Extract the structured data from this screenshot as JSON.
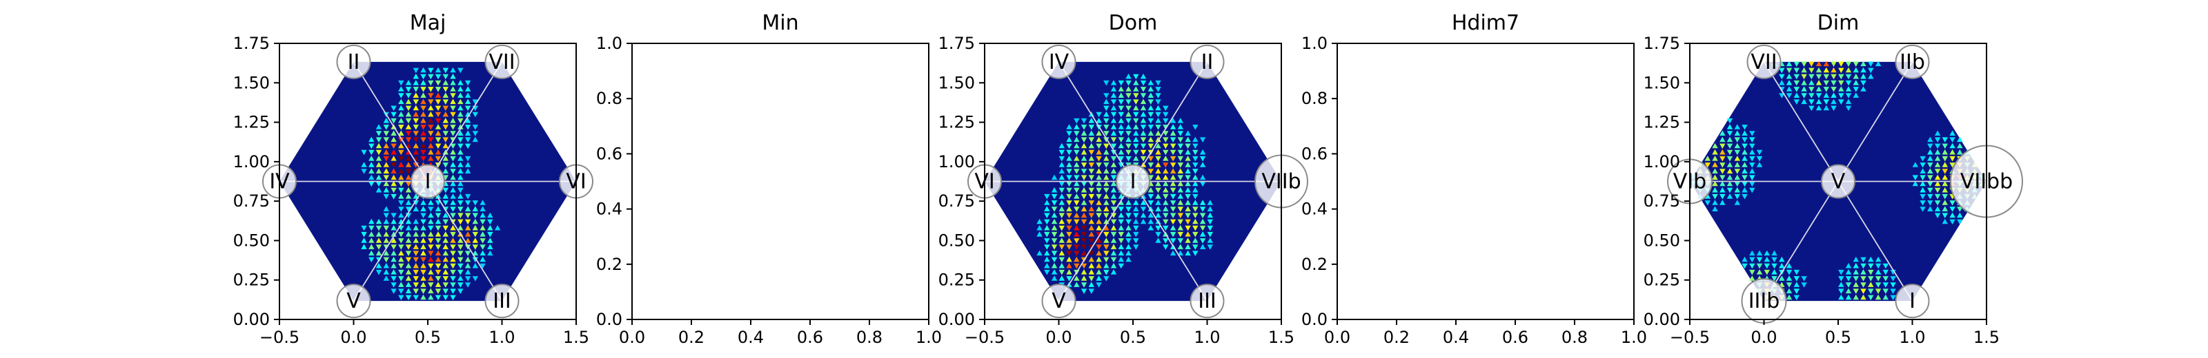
{
  "chart_data": [
    {
      "type": "heatmap",
      "title": "Maj",
      "xlim": [
        -0.5,
        1.5
      ],
      "ylim": [
        0.0,
        1.75
      ],
      "x_ticks": [
        "−0.5",
        "0.0",
        "0.5",
        "1.0",
        "1.5"
      ],
      "y_ticks": [
        "0.00",
        "0.25",
        "0.50",
        "0.75",
        "1.00",
        "1.25",
        "1.50",
        "1.75"
      ],
      "hexagon": true,
      "center_label": "I",
      "vertex_labels": [
        {
          "pos": "top-left",
          "label": "II",
          "size": "normal"
        },
        {
          "pos": "top-right",
          "label": "VII",
          "size": "normal"
        },
        {
          "pos": "left",
          "label": "IV",
          "size": "normal"
        },
        {
          "pos": "right",
          "label": "VI",
          "size": "normal"
        },
        {
          "pos": "bottom-left",
          "label": "V",
          "size": "normal"
        },
        {
          "pos": "bottom-right",
          "label": "III",
          "size": "normal"
        }
      ],
      "hotspots": [
        {
          "x": 0.45,
          "y": 1.05,
          "r": 0.22,
          "w": 0.9
        },
        {
          "x": 0.55,
          "y": 1.35,
          "r": 0.18,
          "w": 0.8
        },
        {
          "x": 0.3,
          "y": 1.0,
          "r": 0.15,
          "w": 0.7
        },
        {
          "x": 0.5,
          "y": 0.35,
          "r": 0.2,
          "w": 0.8
        },
        {
          "x": 0.75,
          "y": 0.55,
          "r": 0.15,
          "w": 0.6
        },
        {
          "x": 0.2,
          "y": 0.5,
          "r": 0.12,
          "w": 0.5
        }
      ]
    },
    {
      "type": "heatmap",
      "title": "Min",
      "xlim": [
        0.0,
        1.0
      ],
      "ylim": [
        0.0,
        1.0
      ],
      "x_ticks": [
        "0.0",
        "0.2",
        "0.4",
        "0.6",
        "0.8",
        "1.0"
      ],
      "y_ticks": [
        "0.0",
        "0.2",
        "0.4",
        "0.6",
        "0.8",
        "1.0"
      ],
      "hexagon": false
    },
    {
      "type": "heatmap",
      "title": "Dom",
      "xlim": [
        -0.5,
        1.5
      ],
      "ylim": [
        0.0,
        1.75
      ],
      "x_ticks": [
        "−0.5",
        "0.0",
        "0.5",
        "1.0",
        "1.5"
      ],
      "y_ticks": [
        "0.00",
        "0.25",
        "0.50",
        "0.75",
        "1.00",
        "1.25",
        "1.50",
        "1.75"
      ],
      "hexagon": true,
      "center_label": "I",
      "vertex_labels": [
        {
          "pos": "top-left",
          "label": "IV",
          "size": "normal"
        },
        {
          "pos": "top-right",
          "label": "II",
          "size": "normal"
        },
        {
          "pos": "left",
          "label": "VI",
          "size": "normal"
        },
        {
          "pos": "right",
          "label": "VIIb",
          "size": "large"
        },
        {
          "pos": "bottom-left",
          "label": "V",
          "size": "normal"
        },
        {
          "pos": "bottom-right",
          "label": "III",
          "size": "normal"
        }
      ],
      "hotspots": [
        {
          "x": 0.2,
          "y": 0.6,
          "r": 0.22,
          "w": 0.9
        },
        {
          "x": 0.15,
          "y": 0.4,
          "r": 0.15,
          "w": 0.8
        },
        {
          "x": 0.7,
          "y": 1.0,
          "r": 0.2,
          "w": 0.7
        },
        {
          "x": 0.25,
          "y": 1.05,
          "r": 0.18,
          "w": 0.6
        },
        {
          "x": 0.85,
          "y": 0.6,
          "r": 0.15,
          "w": 0.6
        },
        {
          "x": 0.5,
          "y": 1.4,
          "r": 0.15,
          "w": 0.4
        }
      ]
    },
    {
      "type": "heatmap",
      "title": "Hdim7",
      "xlim": [
        0.0,
        1.0
      ],
      "ylim": [
        0.0,
        1.0
      ],
      "x_ticks": [
        "0.0",
        "0.2",
        "0.4",
        "0.6",
        "0.8",
        "1.0"
      ],
      "y_ticks": [
        "0.0",
        "0.2",
        "0.4",
        "0.6",
        "0.8",
        "1.0"
      ],
      "hexagon": false
    },
    {
      "type": "heatmap",
      "title": "Dim",
      "xlim": [
        -0.5,
        1.5
      ],
      "ylim": [
        0.0,
        1.75
      ],
      "x_ticks": [
        "−0.5",
        "0.0",
        "0.5",
        "1.0",
        "1.5"
      ],
      "y_ticks": [
        "0.00",
        "0.25",
        "0.50",
        "0.75",
        "1.00",
        "1.25",
        "1.50",
        "1.75"
      ],
      "hexagon": true,
      "center_label": "V",
      "vertex_labels": [
        {
          "pos": "top-left",
          "label": "VII",
          "size": "normal"
        },
        {
          "pos": "top-right",
          "label": "IIb",
          "size": "normal"
        },
        {
          "pos": "left",
          "label": "VIb",
          "size": "medium"
        },
        {
          "pos": "right",
          "label": "VIIbb",
          "size": "xlarge"
        },
        {
          "pos": "bottom-left",
          "label": "IIIb",
          "size": "medium"
        },
        {
          "pos": "bottom-right",
          "label": "I",
          "size": "normal"
        }
      ],
      "hotspots": [
        {
          "x": 0.4,
          "y": 1.7,
          "r": 0.25,
          "w": 0.8
        },
        {
          "x": -0.3,
          "y": 1.0,
          "r": 0.2,
          "w": 0.6
        },
        {
          "x": 1.3,
          "y": 0.9,
          "r": 0.2,
          "w": 0.7
        },
        {
          "x": 0.0,
          "y": 0.15,
          "r": 0.2,
          "w": 0.6
        },
        {
          "x": 0.7,
          "y": 0.2,
          "r": 0.15,
          "w": 0.5
        }
      ]
    }
  ]
}
